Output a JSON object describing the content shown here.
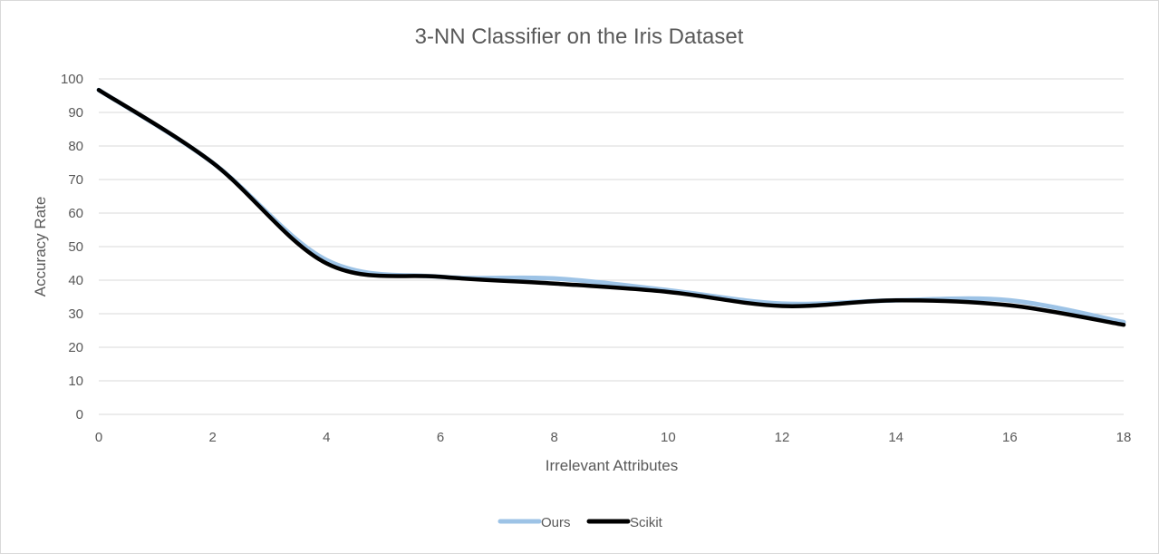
{
  "chart_data": {
    "type": "line",
    "title": "3-NN Classifier on the Iris Dataset",
    "xlabel": "Irrelevant Attributes",
    "ylabel": "Accuracy Rate",
    "xlim": [
      0,
      18
    ],
    "ylim": [
      0,
      100
    ],
    "x_ticks": [
      0,
      2,
      4,
      6,
      8,
      10,
      12,
      14,
      16,
      18
    ],
    "y_ticks": [
      0,
      10,
      20,
      30,
      40,
      50,
      60,
      70,
      80,
      90,
      100
    ],
    "grid": true,
    "smooth": true,
    "legend_position": "bottom",
    "x": [
      0,
      2,
      4,
      6,
      8,
      10,
      12,
      14,
      16,
      18
    ],
    "series": [
      {
        "name": "Ours",
        "color": "#9dc3e6",
        "values": [
          96.7,
          75,
          46,
          41,
          40.5,
          37,
          33,
          34,
          34,
          27.5
        ]
      },
      {
        "name": "Scikit",
        "color": "#000000",
        "values": [
          96.7,
          75,
          45,
          41,
          39,
          36.5,
          32.3,
          34,
          32.5,
          26.7
        ]
      }
    ]
  }
}
